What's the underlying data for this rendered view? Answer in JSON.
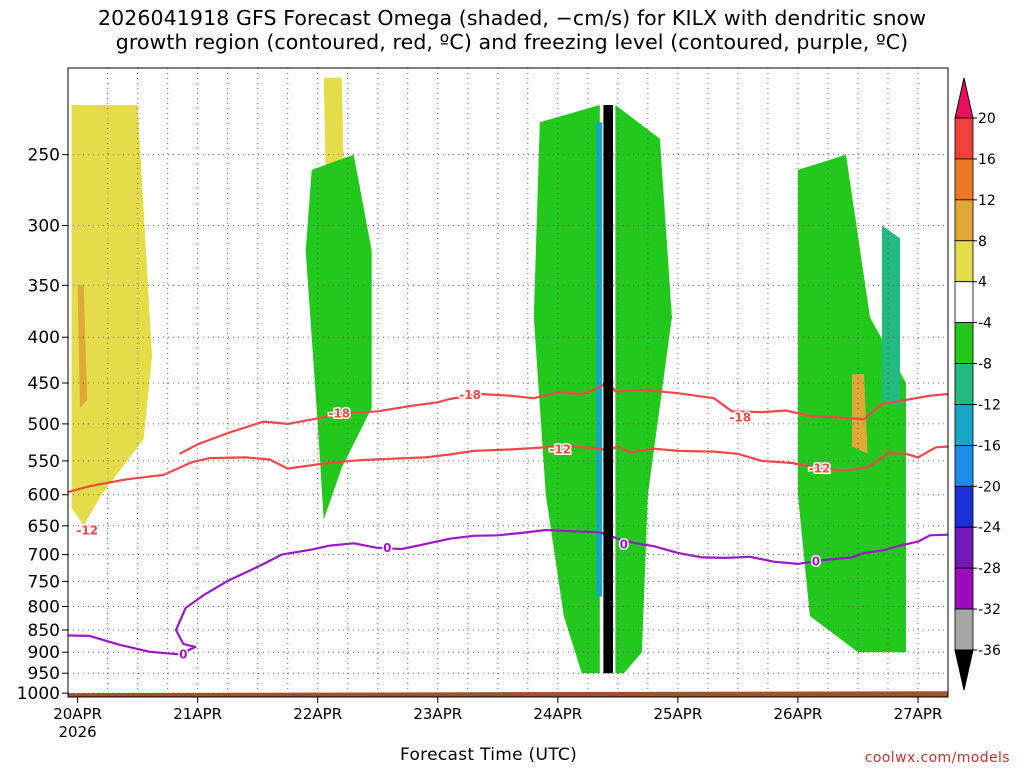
{
  "chart_data": {
    "type": "heatmap",
    "title_line1": "2026041918 GFS Forecast Omega (shaded, −cm/s) for KILX with dendritic snow",
    "title_line2": "growth region (contoured, red, ºC) and freezing level (contoured, purple, ºC)",
    "xlabel": "Forecast Time (UTC)",
    "ylabel": "",
    "x_unit": "days since 20APR 00Z",
    "xlim": [
      -0.08,
      7.25
    ],
    "y_unit": "hPa (log-pressure axis, decreasing upward)",
    "ylim": [
      1010,
      200
    ],
    "x_ticks": [
      {
        "label": "20APR",
        "sub": "2026",
        "x": 0
      },
      {
        "label": "21APR",
        "sub": "",
        "x": 1
      },
      {
        "label": "22APR",
        "sub": "",
        "x": 2
      },
      {
        "label": "23APR",
        "sub": "",
        "x": 3
      },
      {
        "label": "24APR",
        "sub": "",
        "x": 4
      },
      {
        "label": "25APR",
        "sub": "",
        "x": 5
      },
      {
        "label": "26APR",
        "sub": "",
        "x": 6
      },
      {
        "label": "27APR",
        "sub": "",
        "x": 7
      }
    ],
    "y_ticks": [
      250,
      300,
      350,
      400,
      450,
      500,
      550,
      600,
      650,
      700,
      750,
      800,
      850,
      900,
      950,
      1000
    ],
    "grid": true,
    "colorbar": {
      "labels": [
        "20",
        "16",
        "12",
        "8",
        "4",
        "-4",
        "-8",
        "-12",
        "-16",
        "-20",
        "-24",
        "-28",
        "-32",
        "-36"
      ],
      "colors": [
        "#ea0f5e",
        "#f0403a",
        "#ea7828",
        "#e0a838",
        "#e4dc48",
        "#ffffff",
        "#22c81c",
        "#22ba7e",
        "#18a6c4",
        "#1c8ce8",
        "#1c30d8",
        "#7018b8",
        "#9c0cbc",
        "#a6a6a6",
        "#000000"
      ]
    },
    "series": [
      {
        "name": "dendritic growth region -18",
        "color": "#f04848",
        "label": "-18",
        "label_at": [
          [
            2.18,
            487
          ],
          [
            3.27,
            464
          ],
          [
            5.52,
            492
          ]
        ],
        "points": [
          [
            0.85,
            540
          ],
          [
            1.0,
            527
          ],
          [
            1.25,
            512
          ],
          [
            1.55,
            497
          ],
          [
            1.75,
            500
          ],
          [
            2.0,
            493
          ],
          [
            2.2,
            487
          ],
          [
            2.5,
            484
          ],
          [
            2.75,
            478
          ],
          [
            3.0,
            473
          ],
          [
            3.1,
            469
          ],
          [
            3.35,
            463
          ],
          [
            3.6,
            465
          ],
          [
            3.8,
            468
          ],
          [
            4.0,
            461
          ],
          [
            4.2,
            463
          ],
          [
            4.35,
            455
          ],
          [
            4.42,
            448
          ],
          [
            4.48,
            460
          ],
          [
            4.7,
            458
          ],
          [
            5.0,
            462
          ],
          [
            5.3,
            468
          ],
          [
            5.45,
            484
          ],
          [
            5.7,
            485
          ],
          [
            5.9,
            483
          ],
          [
            6.1,
            490
          ],
          [
            6.35,
            492
          ],
          [
            6.55,
            494
          ],
          [
            6.7,
            475
          ],
          [
            6.9,
            470
          ],
          [
            7.1,
            465
          ],
          [
            7.25,
            463
          ]
        ]
      },
      {
        "name": "dendritic growth region -12",
        "color": "#f04848",
        "label": "-12",
        "label_at": [
          [
            0.08,
            658
          ],
          [
            4.02,
            534
          ],
          [
            6.18,
            561
          ]
        ],
        "points": [
          [
            -0.08,
            596
          ],
          [
            0.1,
            587
          ],
          [
            0.4,
            577
          ],
          [
            0.72,
            570
          ],
          [
            0.95,
            552
          ],
          [
            1.1,
            546
          ],
          [
            1.4,
            545
          ],
          [
            1.6,
            548
          ],
          [
            1.75,
            561
          ],
          [
            2.0,
            555
          ],
          [
            2.15,
            552
          ],
          [
            2.35,
            549
          ],
          [
            2.6,
            547
          ],
          [
            2.9,
            545
          ],
          [
            3.1,
            541
          ],
          [
            3.3,
            536
          ],
          [
            3.6,
            534
          ],
          [
            3.9,
            531
          ],
          [
            4.1,
            530
          ],
          [
            4.3,
            532
          ],
          [
            4.42,
            535
          ],
          [
            4.5,
            530
          ],
          [
            4.6,
            538
          ],
          [
            4.8,
            533
          ],
          [
            5.0,
            536
          ],
          [
            5.3,
            537
          ],
          [
            5.5,
            540
          ],
          [
            5.7,
            550
          ],
          [
            5.95,
            553
          ],
          [
            6.2,
            561
          ],
          [
            6.4,
            564
          ],
          [
            6.6,
            558
          ],
          [
            6.75,
            539
          ],
          [
            6.9,
            540
          ],
          [
            7.0,
            545
          ],
          [
            7.15,
            531
          ],
          [
            7.25,
            530
          ]
        ]
      },
      {
        "name": "freezing level 0",
        "color": "#9a18c8",
        "label": "0",
        "label_at": [
          [
            0.88,
            905
          ],
          [
            2.58,
            688
          ],
          [
            4.55,
            682
          ],
          [
            6.15,
            713
          ]
        ],
        "points": [
          [
            -0.08,
            862
          ],
          [
            0.1,
            863
          ],
          [
            0.35,
            883
          ],
          [
            0.6,
            899
          ],
          [
            0.85,
            905
          ],
          [
            0.94,
            893
          ],
          [
            0.98,
            888
          ],
          [
            0.88,
            881
          ],
          [
            0.82,
            850
          ],
          [
            0.9,
            803
          ],
          [
            1.05,
            777
          ],
          [
            1.25,
            749
          ],
          [
            1.4,
            733
          ],
          [
            1.55,
            717
          ],
          [
            1.7,
            700
          ],
          [
            1.95,
            691
          ],
          [
            2.1,
            684
          ],
          [
            2.3,
            680
          ],
          [
            2.5,
            688
          ],
          [
            2.7,
            690
          ],
          [
            2.9,
            681
          ],
          [
            3.1,
            672
          ],
          [
            3.3,
            667
          ],
          [
            3.5,
            666
          ],
          [
            3.7,
            662
          ],
          [
            3.9,
            657
          ],
          [
            4.1,
            659
          ],
          [
            4.35,
            661
          ],
          [
            4.5,
            672
          ],
          [
            4.65,
            680
          ],
          [
            4.8,
            685
          ],
          [
            5.0,
            697
          ],
          [
            5.2,
            705
          ],
          [
            5.4,
            706
          ],
          [
            5.6,
            704
          ],
          [
            5.8,
            713
          ],
          [
            6.0,
            717
          ],
          [
            6.2,
            710
          ],
          [
            6.45,
            705
          ],
          [
            6.55,
            697
          ],
          [
            6.7,
            693
          ],
          [
            6.85,
            684
          ],
          [
            7.0,
            677
          ],
          [
            7.1,
            666
          ],
          [
            7.25,
            665
          ]
        ]
      },
      {
        "name": "omega -36 (strong ascent core)",
        "color": "#000000",
        "points": [
          [
            4.38,
            220
          ],
          [
            4.38,
            950
          ],
          [
            4.46,
            950
          ],
          [
            4.46,
            220
          ]
        ]
      }
    ],
    "shaded_regions": [
      {
        "name": "omega 4-8 positive",
        "color": "#e4dc48",
        "points": [
          [
            -0.05,
            220
          ],
          [
            0.5,
            220
          ],
          [
            0.62,
            420
          ],
          [
            0.55,
            520
          ],
          [
            0.2,
            600
          ],
          [
            0.05,
            650
          ],
          [
            -0.05,
            620
          ]
        ]
      },
      {
        "name": "omega 8-12 positive",
        "color": "#e0a838",
        "points": [
          [
            0.0,
            350
          ],
          [
            0.05,
            350
          ],
          [
            0.08,
            470
          ],
          [
            0.02,
            480
          ]
        ]
      },
      {
        "name": "omega 4-8 positive",
        "color": "#e4dc48",
        "points": [
          [
            2.05,
            205
          ],
          [
            2.2,
            205
          ],
          [
            2.25,
            400
          ],
          [
            2.1,
            440
          ]
        ]
      },
      {
        "name": "omega -4 to -8",
        "color": "#22c81c",
        "points": [
          [
            1.95,
            260
          ],
          [
            2.3,
            250
          ],
          [
            2.45,
            320
          ],
          [
            2.45,
            480
          ],
          [
            2.2,
            560
          ],
          [
            2.05,
            640
          ],
          [
            2.0,
            500
          ],
          [
            1.9,
            320
          ]
        ]
      },
      {
        "name": "omega -4 to -8",
        "color": "#22c81c",
        "points": [
          [
            3.85,
            230
          ],
          [
            4.35,
            220
          ],
          [
            4.35,
            950
          ],
          [
            4.2,
            950
          ],
          [
            4.05,
            820
          ],
          [
            3.9,
            600
          ],
          [
            3.8,
            380
          ]
        ]
      },
      {
        "name": "omega -4 to -8",
        "color": "#22c81c",
        "points": [
          [
            4.48,
            220
          ],
          [
            4.85,
            240
          ],
          [
            4.95,
            380
          ],
          [
            4.75,
            600
          ],
          [
            4.7,
            900
          ],
          [
            4.55,
            950
          ],
          [
            4.48,
            950
          ]
        ]
      },
      {
        "name": "omega -4 to -8",
        "color": "#22c81c",
        "points": [
          [
            6.0,
            260
          ],
          [
            6.4,
            250
          ],
          [
            6.6,
            380
          ],
          [
            6.9,
            450
          ],
          [
            6.9,
            900
          ],
          [
            6.5,
            900
          ],
          [
            6.1,
            820
          ],
          [
            6.0,
            600
          ]
        ]
      },
      {
        "name": "omega -12 to -16",
        "color": "#22ba7e",
        "points": [
          [
            6.7,
            300
          ],
          [
            6.85,
            310
          ],
          [
            6.85,
            480
          ],
          [
            6.7,
            470
          ]
        ]
      },
      {
        "name": "omega -16 to -20",
        "color": "#18a6c4",
        "points": [
          [
            4.32,
            230
          ],
          [
            4.37,
            230
          ],
          [
            4.37,
            780
          ],
          [
            4.32,
            780
          ]
        ]
      },
      {
        "name": "omega 8-12 positive",
        "color": "#e0a838",
        "points": [
          [
            6.45,
            440
          ],
          [
            6.55,
            440
          ],
          [
            6.58,
            540
          ],
          [
            6.45,
            530
          ]
        ]
      }
    ],
    "ground": {
      "color": "#a0522d",
      "top_hPa": [
        [
          -0.08,
          1000
        ],
        [
          7.25,
          995
        ]
      ]
    }
  },
  "credit": "coolwx.com/models"
}
